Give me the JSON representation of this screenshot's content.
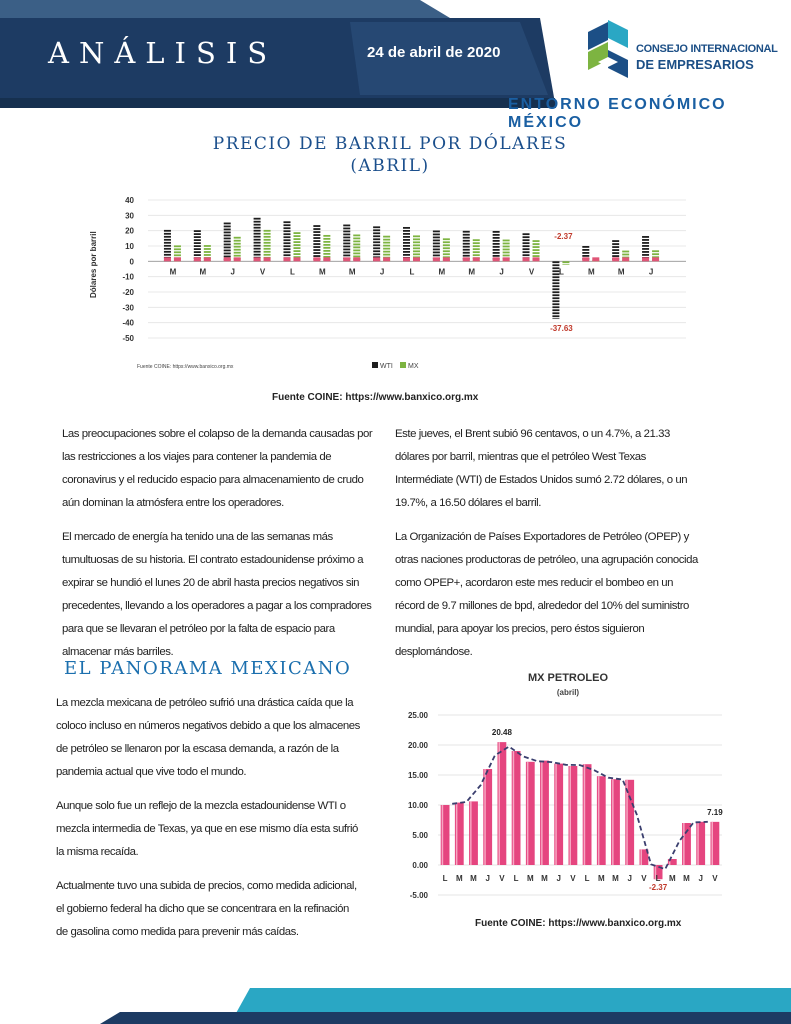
{
  "header": {
    "title": "ANÁLISIS",
    "date": "24 de abril de 2020",
    "org_line1": "CONSEJO INTERNACIONAL",
    "org_line2": "DE EMPRESARIOS",
    "subtitle": "ENTORNO ECONÓMICO MÉXICO"
  },
  "colors": {
    "navy": "#1d3b63",
    "teal": "#2aa7c4",
    "blue": "#1a5fa2",
    "green": "#7db441",
    "pink": "#e5457f"
  },
  "section1": {
    "title_line1": "PRECIO DE BARRIL POR DÓLARES",
    "title_line2": "(ABRIL)",
    "source": "Fuente COINE: https://www.banxico.org.mx"
  },
  "body_left": [
    "Las preocupaciones sobre el colapso de la demanda causadas por las restricciones a los viajes para contener la pandemia de coronavirus y el reducido espacio para almacenamiento de crudo aún dominan la atmósfera entre los operadores.",
    "El mercado de energía ha tenido una de las semanas más tumultuosas de su historia. El contrato estadounidense próximo a expirar se hundió el lunes 20 de abril hasta precios negativos sin precedentes, llevando a los operadores a pagar a los compradores para que se llevaran el petróleo por la falta de espacio para almacenar más barriles."
  ],
  "body_right": [
    "Este jueves, el Brent subió 96 centavos, o un 4.7%, a 21.33 dólares por barril, mientras que el petróleo West Texas Intermédiate (WTI) de Estados Unidos sumó 2.72 dólares, o un 19.7%, a 16.50 dólares el barril.",
    "La Organización de Países Exportadores de Petróleo (OPEP) y otras naciones productoras de petróleo, una agrupación conocida como OPEP+, acordaron este mes reducir el bombeo en un récord de 9.7 millones de bpd, alrededor del 10% del suministro mundial, para apoyar los precios, pero éstos siguieron desplomándose."
  ],
  "section2": {
    "title": "EL PANORAMA MEXICANO",
    "paragraphs": [
      "La mezcla mexicana de petróleo sufrió una drástica caída que la coloco incluso en números negativos debido a que los almacenes de petróleo se llenaron por la escasa demanda, a razón de la pandemia actual que vive todo el mundo.",
      "Aunque solo fue un reflejo de la mezcla estadounidense WTI o mezcla intermedia  de Texas, ya que en ese mismo día esta sufrió la misma recaída.",
      "Actualmente tuvo una subida de precios, como medida adicional, el gobierno federal ha dicho que se concentrara en la refinación de gasolina como medida para prevenir más caídas."
    ],
    "source": "Fuente COINE: https://www.banxico.org.mx"
  },
  "chart_data": [
    {
      "type": "bar",
      "ylabel": "Dólares por barril",
      "ylim": [
        -50,
        40
      ],
      "yticks": [
        "40",
        "30",
        "20",
        "10",
        "0",
        "-10",
        "-20",
        "-30",
        "-40",
        "-50"
      ],
      "categories": [
        "M",
        "M",
        "J",
        "V",
        "L",
        "M",
        "M",
        "J",
        "L",
        "M",
        "M",
        "J",
        "V",
        "L",
        "M",
        "M",
        "J"
      ],
      "series": [
        {
          "name": "WTI",
          "values": [
            20.5,
            20.3,
            25.3,
            28.4,
            26.1,
            23.6,
            24.0,
            22.8,
            22.4,
            20.1,
            19.9,
            19.8,
            18.3,
            -37.63,
            10.0,
            13.8,
            16.5
          ]
        },
        {
          "name": "MX",
          "values": [
            10.4,
            10.6,
            16.0,
            20.5,
            19.0,
            17.2,
            17.5,
            16.7,
            16.9,
            15.0,
            14.4,
            14.2,
            13.8,
            -2.37,
            1.0,
            7.0,
            7.2
          ]
        }
      ],
      "labels": [
        "-2.37",
        "-37.63"
      ],
      "legend": [
        "WTI",
        "MX"
      ],
      "legend_position": "bottom-right",
      "source_small": "Fuente COINE: https://www.banxico.org.mx"
    },
    {
      "type": "bar",
      "title": "MX PETROLEO",
      "subtitle": "(abril)",
      "ylim": [
        -5,
        25
      ],
      "yticks": [
        "25.00",
        "20.00",
        "15.00",
        "10.00",
        "5.00",
        "0.00",
        "-5.00"
      ],
      "categories": [
        "L",
        "M",
        "M",
        "J",
        "V",
        "L",
        "M",
        "M",
        "J",
        "V",
        "L",
        "M",
        "M",
        "J",
        "V",
        "L",
        "M",
        "M",
        "J",
        "V"
      ],
      "values": [
        10.0,
        10.4,
        10.6,
        16.0,
        20.48,
        19.0,
        17.2,
        17.4,
        16.9,
        16.5,
        16.8,
        14.8,
        14.3,
        14.2,
        2.6,
        -2.37,
        1.0,
        7.0,
        7.2,
        7.19
      ],
      "trendline": "moving-average",
      "grid": true,
      "labels": [
        {
          "index": 4,
          "text": "20.48"
        },
        {
          "index": 15,
          "text": "-2.37"
        },
        {
          "index": 19,
          "text": "7.19"
        }
      ]
    }
  ]
}
